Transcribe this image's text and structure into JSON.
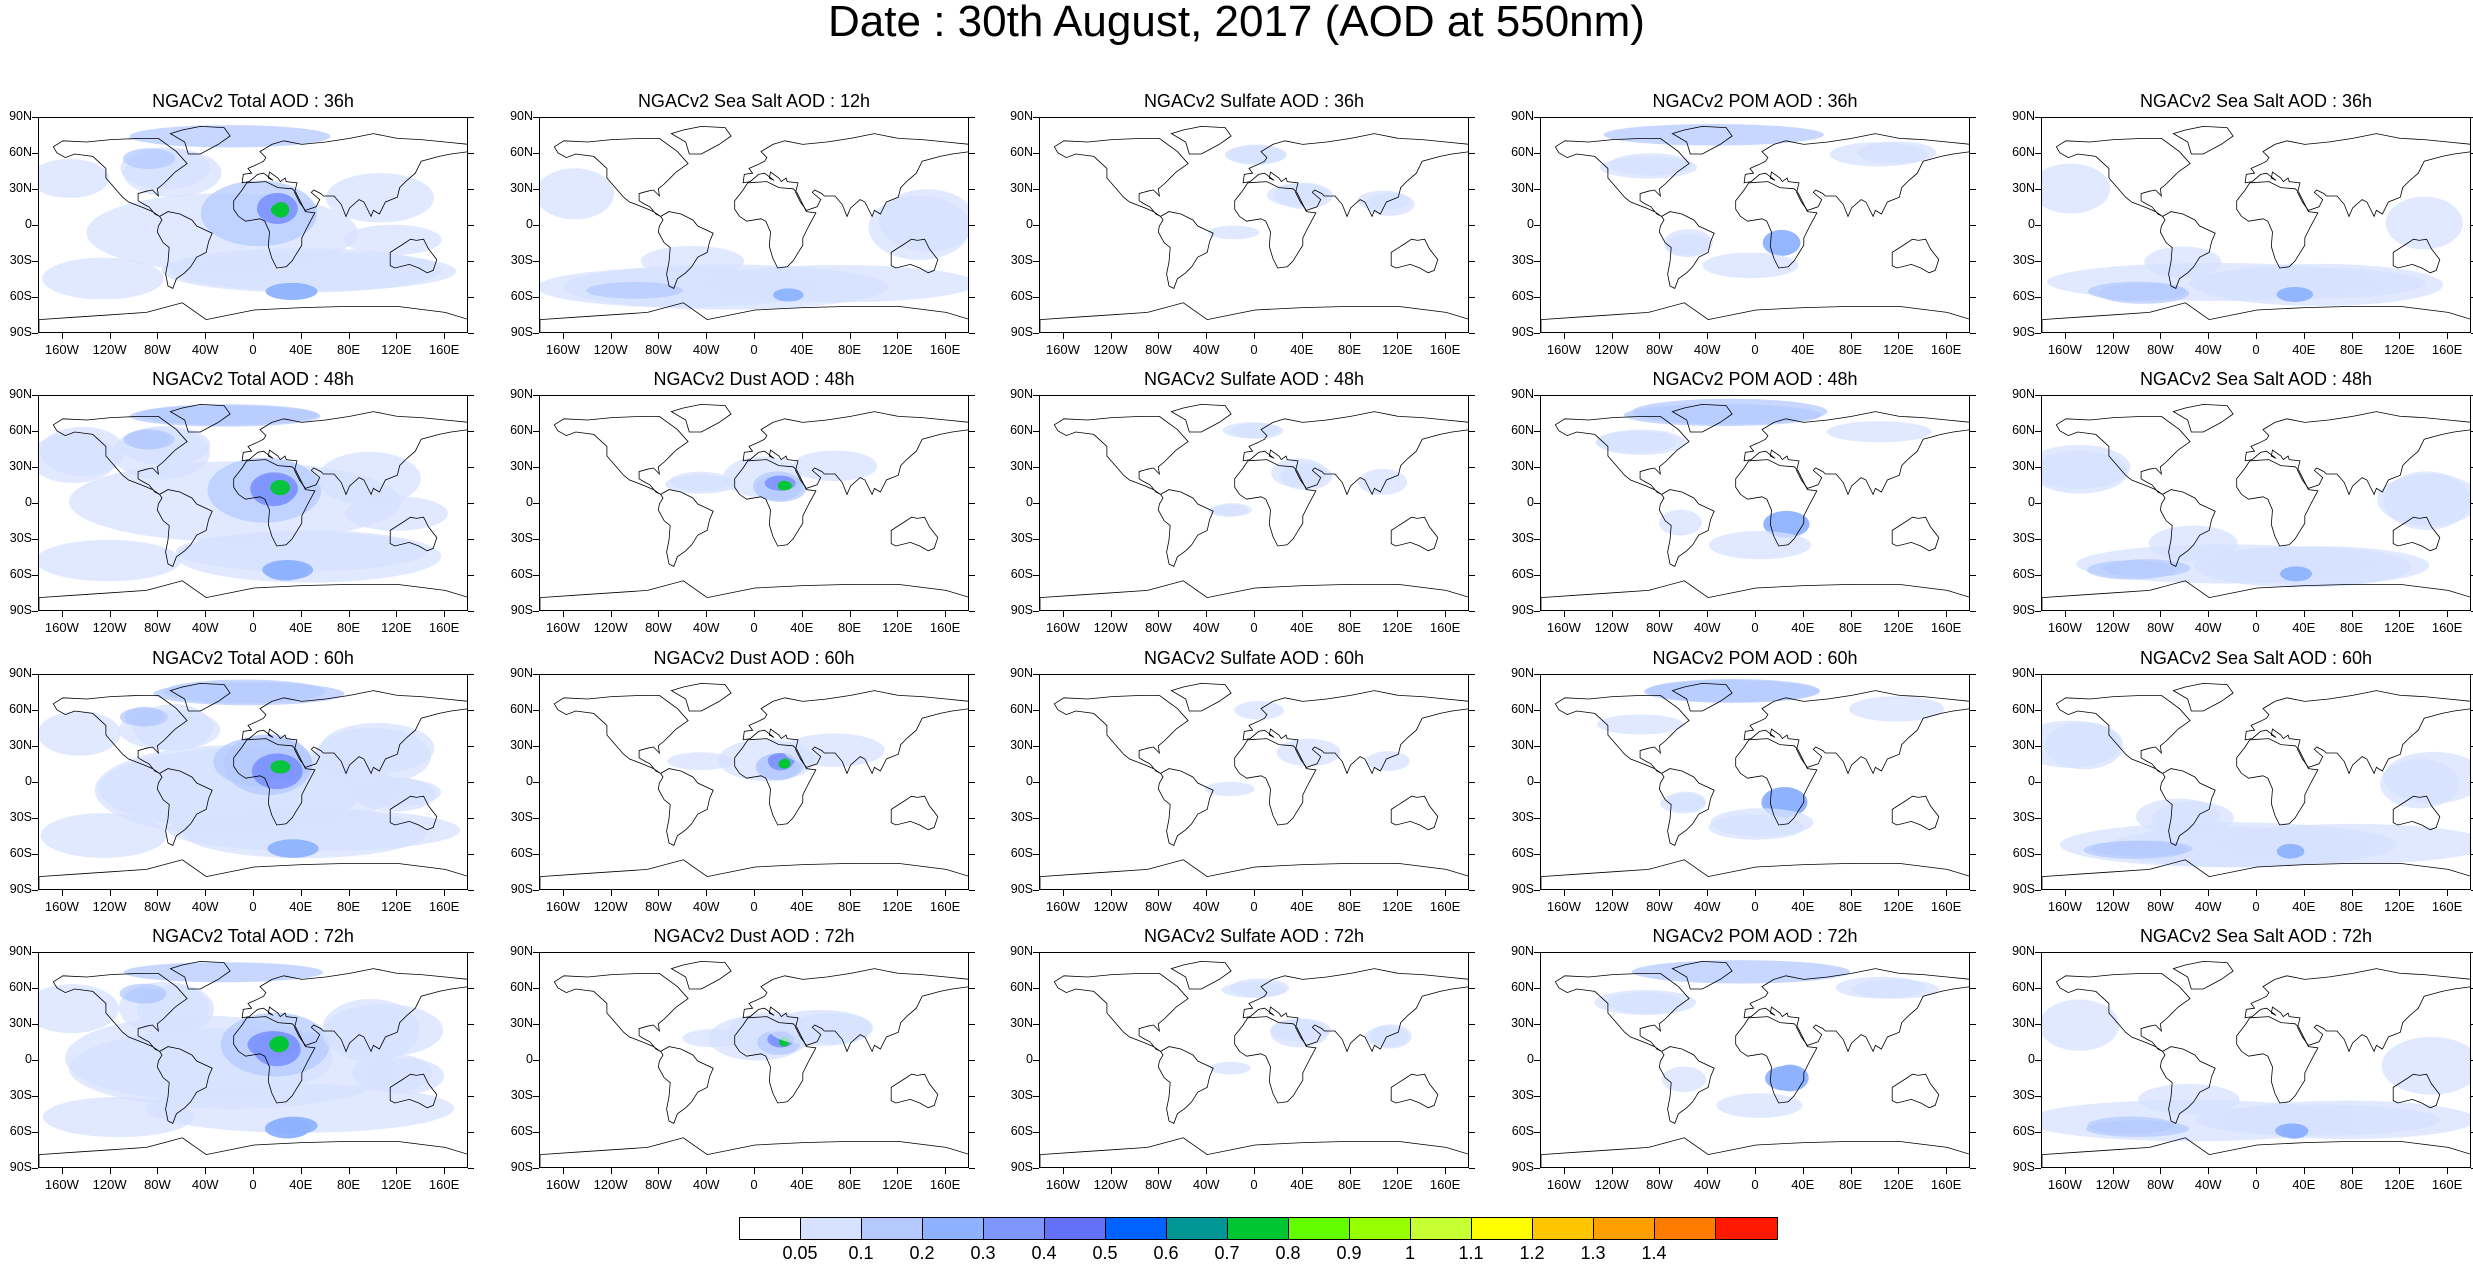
{
  "title": "Date : 30th August, 2017 (AOD at 550nm)",
  "panels": [
    [
      "NGACv2 Total AOD : 36h",
      "NGACv2 Sea Salt  AOD : 12h",
      "NGACv2 Sulfate AOD : 36h",
      "NGACv2 POM AOD : 36h",
      "NGACv2 Sea Salt  AOD : 36h"
    ],
    [
      "NGACv2 Total AOD : 48h",
      "NGACv2 Dust AOD : 48h",
      "NGACv2 Sulfate AOD : 48h",
      "NGACv2 POM AOD : 48h",
      "NGACv2 Sea Salt  AOD : 48h"
    ],
    [
      "NGACv2 Total AOD : 60h",
      "NGACv2 Dust AOD : 60h",
      "NGACv2 Sulfate AOD : 60h",
      "NGACv2 POM AOD : 60h",
      "NGACv2 Sea Salt  AOD : 60h"
    ],
    [
      "NGACv2 Total AOD : 72h",
      "NGACv2 Dust AOD : 72h",
      "NGACv2 Sulfate AOD : 72h",
      "NGACv2 POM AOD : 72h",
      "NGACv2 Sea Salt  AOD : 72h"
    ]
  ],
  "lat_labels": [
    "90N",
    "60N",
    "30N",
    "0",
    "30S",
    "60S",
    "90S"
  ],
  "lon_labels": [
    "160W",
    "120W",
    "80W",
    "40W",
    "0",
    "40E",
    "80E",
    "120E",
    "160E"
  ],
  "colorbar": {
    "labels": [
      "0.05",
      "0.1",
      "0.2",
      "0.3",
      "0.4",
      "0.5",
      "0.6",
      "0.7",
      "0.8",
      "0.9",
      "1",
      "1.1",
      "1.2",
      "1.3",
      "1.4"
    ],
    "colors": [
      "#ffffff",
      "#d6e2ff",
      "#b5c9ff",
      "#8eb2ff",
      "#7f96ff",
      "#6370f8",
      "#0063ff",
      "#009696",
      "#00c633",
      "#63ff00",
      "#96ff00",
      "#c6ff33",
      "#ffff00",
      "#ffc600",
      "#ffa000",
      "#ff7c00",
      "#ff1900"
    ]
  },
  "color_legend": {
    "land": "#ffffff",
    "coastline": "#000000",
    "light_aerosol": "#d6e2ff",
    "medium_aerosol": "#8eb2ff",
    "high_aerosol": "#6370f8"
  }
}
